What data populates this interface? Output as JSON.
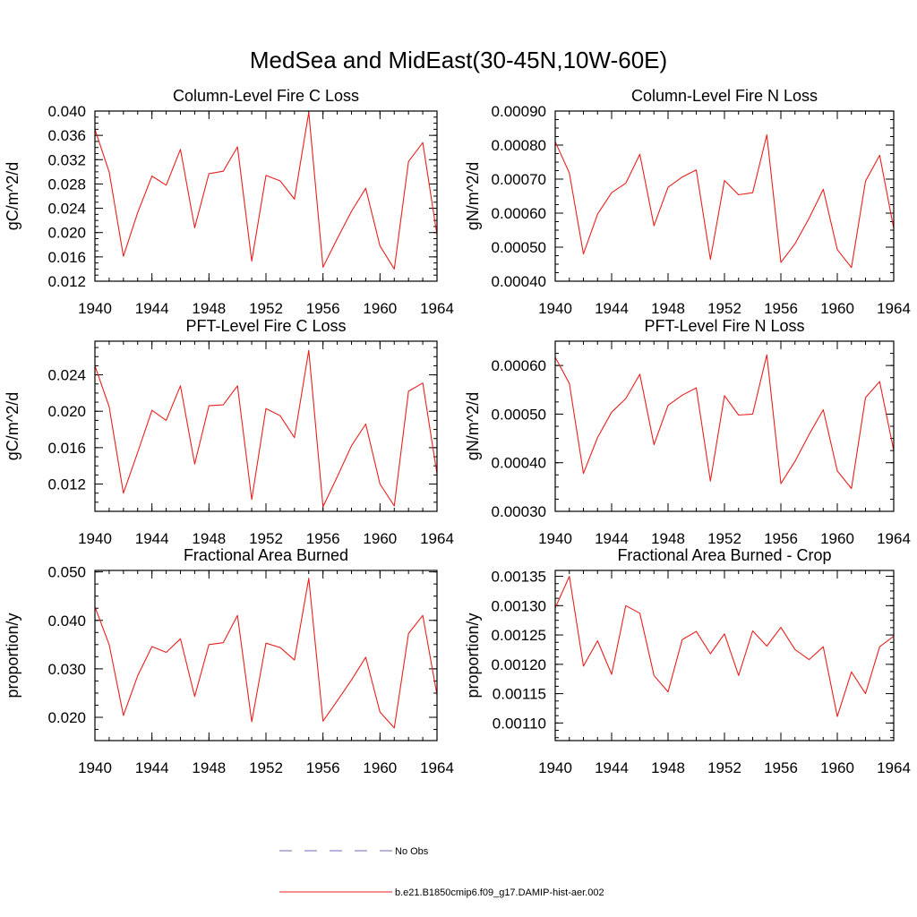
{
  "figure": {
    "title": "MedSea and MidEast(30-45N,10W-60E)",
    "legend": [
      {
        "label": "No Obs",
        "color": "#6a6ab8",
        "dash": true
      },
      {
        "label": "b.e21.B1850cmip6.f09_g17.DAMIP-hist-aer.002",
        "color": "#e8201e",
        "dash": false
      }
    ],
    "line_color": "#e8201e"
  },
  "chart_data": [
    {
      "type": "line",
      "title": "Column-Level Fire C Loss",
      "ylabel": "gC/m^2/d",
      "xlim": [
        1940,
        1964
      ],
      "ylim": [
        0.012,
        0.04
      ],
      "xticks": [
        1940,
        1944,
        1948,
        1952,
        1956,
        1960,
        1964
      ],
      "xtick_labels": [
        "1940",
        "1944",
        "1948",
        "1952",
        "1956",
        "1960",
        "1964"
      ],
      "yticks": [
        0.012,
        0.016,
        0.02,
        0.024,
        0.028,
        0.032,
        0.036,
        0.04
      ],
      "ytick_labels": [
        "0.012",
        "0.016",
        "0.020",
        "0.024",
        "0.028",
        "0.032",
        "0.036",
        "0.040"
      ],
      "x": [
        1940,
        1941,
        1942,
        1943,
        1944,
        1945,
        1946,
        1947,
        1948,
        1949,
        1950,
        1951,
        1952,
        1953,
        1954,
        1955,
        1956,
        1957,
        1958,
        1959,
        1960,
        1961,
        1962,
        1963,
        1964
      ],
      "series": [
        {
          "values": [
            0.037,
            0.03,
            0.0161,
            0.0233,
            0.0293,
            0.0278,
            0.0337,
            0.0208,
            0.0297,
            0.0301,
            0.0341,
            0.0153,
            0.0294,
            0.0285,
            0.0255,
            0.0398,
            0.0143,
            0.019,
            0.0235,
            0.0273,
            0.0178,
            0.014,
            0.0317,
            0.0348,
            0.0196
          ]
        }
      ]
    },
    {
      "type": "line",
      "title": "Column-Level Fire N Loss",
      "ylabel": "gN/m^2/d",
      "xlim": [
        1940,
        1964
      ],
      "ylim": [
        0.0004,
        0.0009
      ],
      "xticks": [
        1940,
        1944,
        1948,
        1952,
        1956,
        1960,
        1964
      ],
      "xtick_labels": [
        "1940",
        "1944",
        "1948",
        "1952",
        "1956",
        "1960",
        "1964"
      ],
      "yticks": [
        0.0004,
        0.0005,
        0.0006,
        0.0007,
        0.0008,
        0.0009
      ],
      "ytick_labels": [
        "0.00040",
        "0.00050",
        "0.00060",
        "0.00070",
        "0.00080",
        "0.00090"
      ],
      "x": [
        1940,
        1941,
        1942,
        1943,
        1944,
        1945,
        1946,
        1947,
        1948,
        1949,
        1950,
        1951,
        1952,
        1953,
        1954,
        1955,
        1956,
        1957,
        1958,
        1959,
        1960,
        1961,
        1962,
        1963,
        1964
      ],
      "series": [
        {
          "values": [
            0.00081,
            0.000718,
            0.00048,
            0.000597,
            0.00066,
            0.000688,
            0.000773,
            0.000563,
            0.000676,
            0.000706,
            0.000727,
            0.000464,
            0.000696,
            0.000654,
            0.00066,
            0.00083,
            0.000455,
            0.00051,
            0.000585,
            0.00067,
            0.000493,
            0.00044,
            0.000694,
            0.00077,
            0.000555
          ]
        }
      ]
    },
    {
      "type": "line",
      "title": "PFT-Level Fire C Loss",
      "ylabel": "gC/m^2/d",
      "xlim": [
        1940,
        1964
      ],
      "ylim": [
        0.009,
        0.0277
      ],
      "xticks": [
        1940,
        1944,
        1948,
        1952,
        1956,
        1960,
        1964
      ],
      "xtick_labels": [
        "1940",
        "1944",
        "1948",
        "1952",
        "1956",
        "1960",
        "1964"
      ],
      "yticks": [
        0.012,
        0.016,
        0.02,
        0.024
      ],
      "ytick_labels": [
        "0.012",
        "0.016",
        "0.020",
        "0.024"
      ],
      "x": [
        1940,
        1941,
        1942,
        1943,
        1944,
        1945,
        1946,
        1947,
        1948,
        1949,
        1950,
        1951,
        1952,
        1953,
        1954,
        1955,
        1956,
        1957,
        1958,
        1959,
        1960,
        1961,
        1962,
        1963,
        1964
      ],
      "series": [
        {
          "values": [
            0.025,
            0.0205,
            0.011,
            0.0155,
            0.0201,
            0.019,
            0.0228,
            0.0142,
            0.0206,
            0.0207,
            0.0228,
            0.0103,
            0.0203,
            0.0195,
            0.0171,
            0.0267,
            0.0095,
            0.0128,
            0.0162,
            0.0186,
            0.012,
            0.0096,
            0.0222,
            0.0231,
            0.0131
          ]
        }
      ]
    },
    {
      "type": "line",
      "title": "PFT-Level Fire N Loss",
      "ylabel": "gN/m^2/d",
      "xlim": [
        1940,
        1964
      ],
      "ylim": [
        0.0003,
        0.00065
      ],
      "xticks": [
        1940,
        1944,
        1948,
        1952,
        1956,
        1960,
        1964
      ],
      "xtick_labels": [
        "1940",
        "1944",
        "1948",
        "1952",
        "1956",
        "1960",
        "1964"
      ],
      "yticks": [
        0.0003,
        0.0004,
        0.0005,
        0.0006
      ],
      "ytick_labels": [
        "0.00030",
        "0.00040",
        "0.00050",
        "0.00060"
      ],
      "x": [
        1940,
        1941,
        1942,
        1943,
        1944,
        1945,
        1946,
        1947,
        1948,
        1949,
        1950,
        1951,
        1952,
        1953,
        1954,
        1955,
        1956,
        1957,
        1958,
        1959,
        1960,
        1961,
        1962,
        1963,
        1964
      ],
      "series": [
        {
          "values": [
            0.000617,
            0.000563,
            0.000378,
            0.000452,
            0.000504,
            0.000532,
            0.000582,
            0.000437,
            0.000518,
            0.000539,
            0.000554,
            0.000362,
            0.000538,
            0.000498,
            0.0005,
            0.000622,
            0.000357,
            0.000403,
            0.000458,
            0.000509,
            0.000383,
            0.000347,
            0.000534,
            0.000567,
            0.000425
          ]
        }
      ]
    },
    {
      "type": "line",
      "title": "Fractional Area Burned",
      "ylabel": "proportion/y",
      "xlim": [
        1940,
        1964
      ],
      "ylim": [
        0.0152,
        0.0503
      ],
      "xticks": [
        1940,
        1944,
        1948,
        1952,
        1956,
        1960,
        1964
      ],
      "xtick_labels": [
        "1940",
        "1944",
        "1948",
        "1952",
        "1956",
        "1960",
        "1964"
      ],
      "yticks": [
        0.02,
        0.03,
        0.04,
        0.05
      ],
      "ytick_labels": [
        "0.020",
        "0.030",
        "0.040",
        "0.050"
      ],
      "x": [
        1940,
        1941,
        1942,
        1943,
        1944,
        1945,
        1946,
        1947,
        1948,
        1949,
        1950,
        1951,
        1952,
        1953,
        1954,
        1955,
        1956,
        1957,
        1958,
        1959,
        1960,
        1961,
        1962,
        1963,
        1964
      ],
      "series": [
        {
          "values": [
            0.0428,
            0.035,
            0.0204,
            0.0286,
            0.0346,
            0.0334,
            0.0362,
            0.0243,
            0.035,
            0.0354,
            0.041,
            0.0191,
            0.0353,
            0.0344,
            0.0318,
            0.0487,
            0.0192,
            0.0234,
            0.0277,
            0.0324,
            0.0211,
            0.0178,
            0.0373,
            0.041,
            0.0246
          ]
        }
      ]
    },
    {
      "type": "line",
      "title": "Fractional Area Burned - Crop",
      "ylabel": "proportion/y",
      "xlim": [
        1940,
        1964
      ],
      "ylim": [
        0.00107,
        0.00136
      ],
      "xticks": [
        1940,
        1944,
        1948,
        1952,
        1956,
        1960,
        1964
      ],
      "xtick_labels": [
        "1940",
        "1944",
        "1948",
        "1952",
        "1956",
        "1960",
        "1964"
      ],
      "yticks": [
        0.0011,
        0.00115,
        0.0012,
        0.00125,
        0.0013,
        0.00135
      ],
      "ytick_labels": [
        "0.00110",
        "0.00115",
        "0.00120",
        "0.00125",
        "0.00130",
        "0.00135"
      ],
      "x": [
        1940,
        1941,
        1942,
        1943,
        1944,
        1945,
        1946,
        1947,
        1948,
        1949,
        1950,
        1951,
        1952,
        1953,
        1954,
        1955,
        1956,
        1957,
        1958,
        1959,
        1960,
        1961,
        1962,
        1963,
        1964
      ],
      "series": [
        {
          "values": [
            0.001296,
            0.00135,
            0.001197,
            0.00124,
            0.001183,
            0.0013,
            0.001287,
            0.001181,
            0.001153,
            0.001242,
            0.001256,
            0.001218,
            0.001252,
            0.001181,
            0.001257,
            0.001231,
            0.001263,
            0.001225,
            0.001208,
            0.00123,
            0.001111,
            0.001187,
            0.00115,
            0.00123,
            0.001248
          ]
        }
      ]
    }
  ]
}
